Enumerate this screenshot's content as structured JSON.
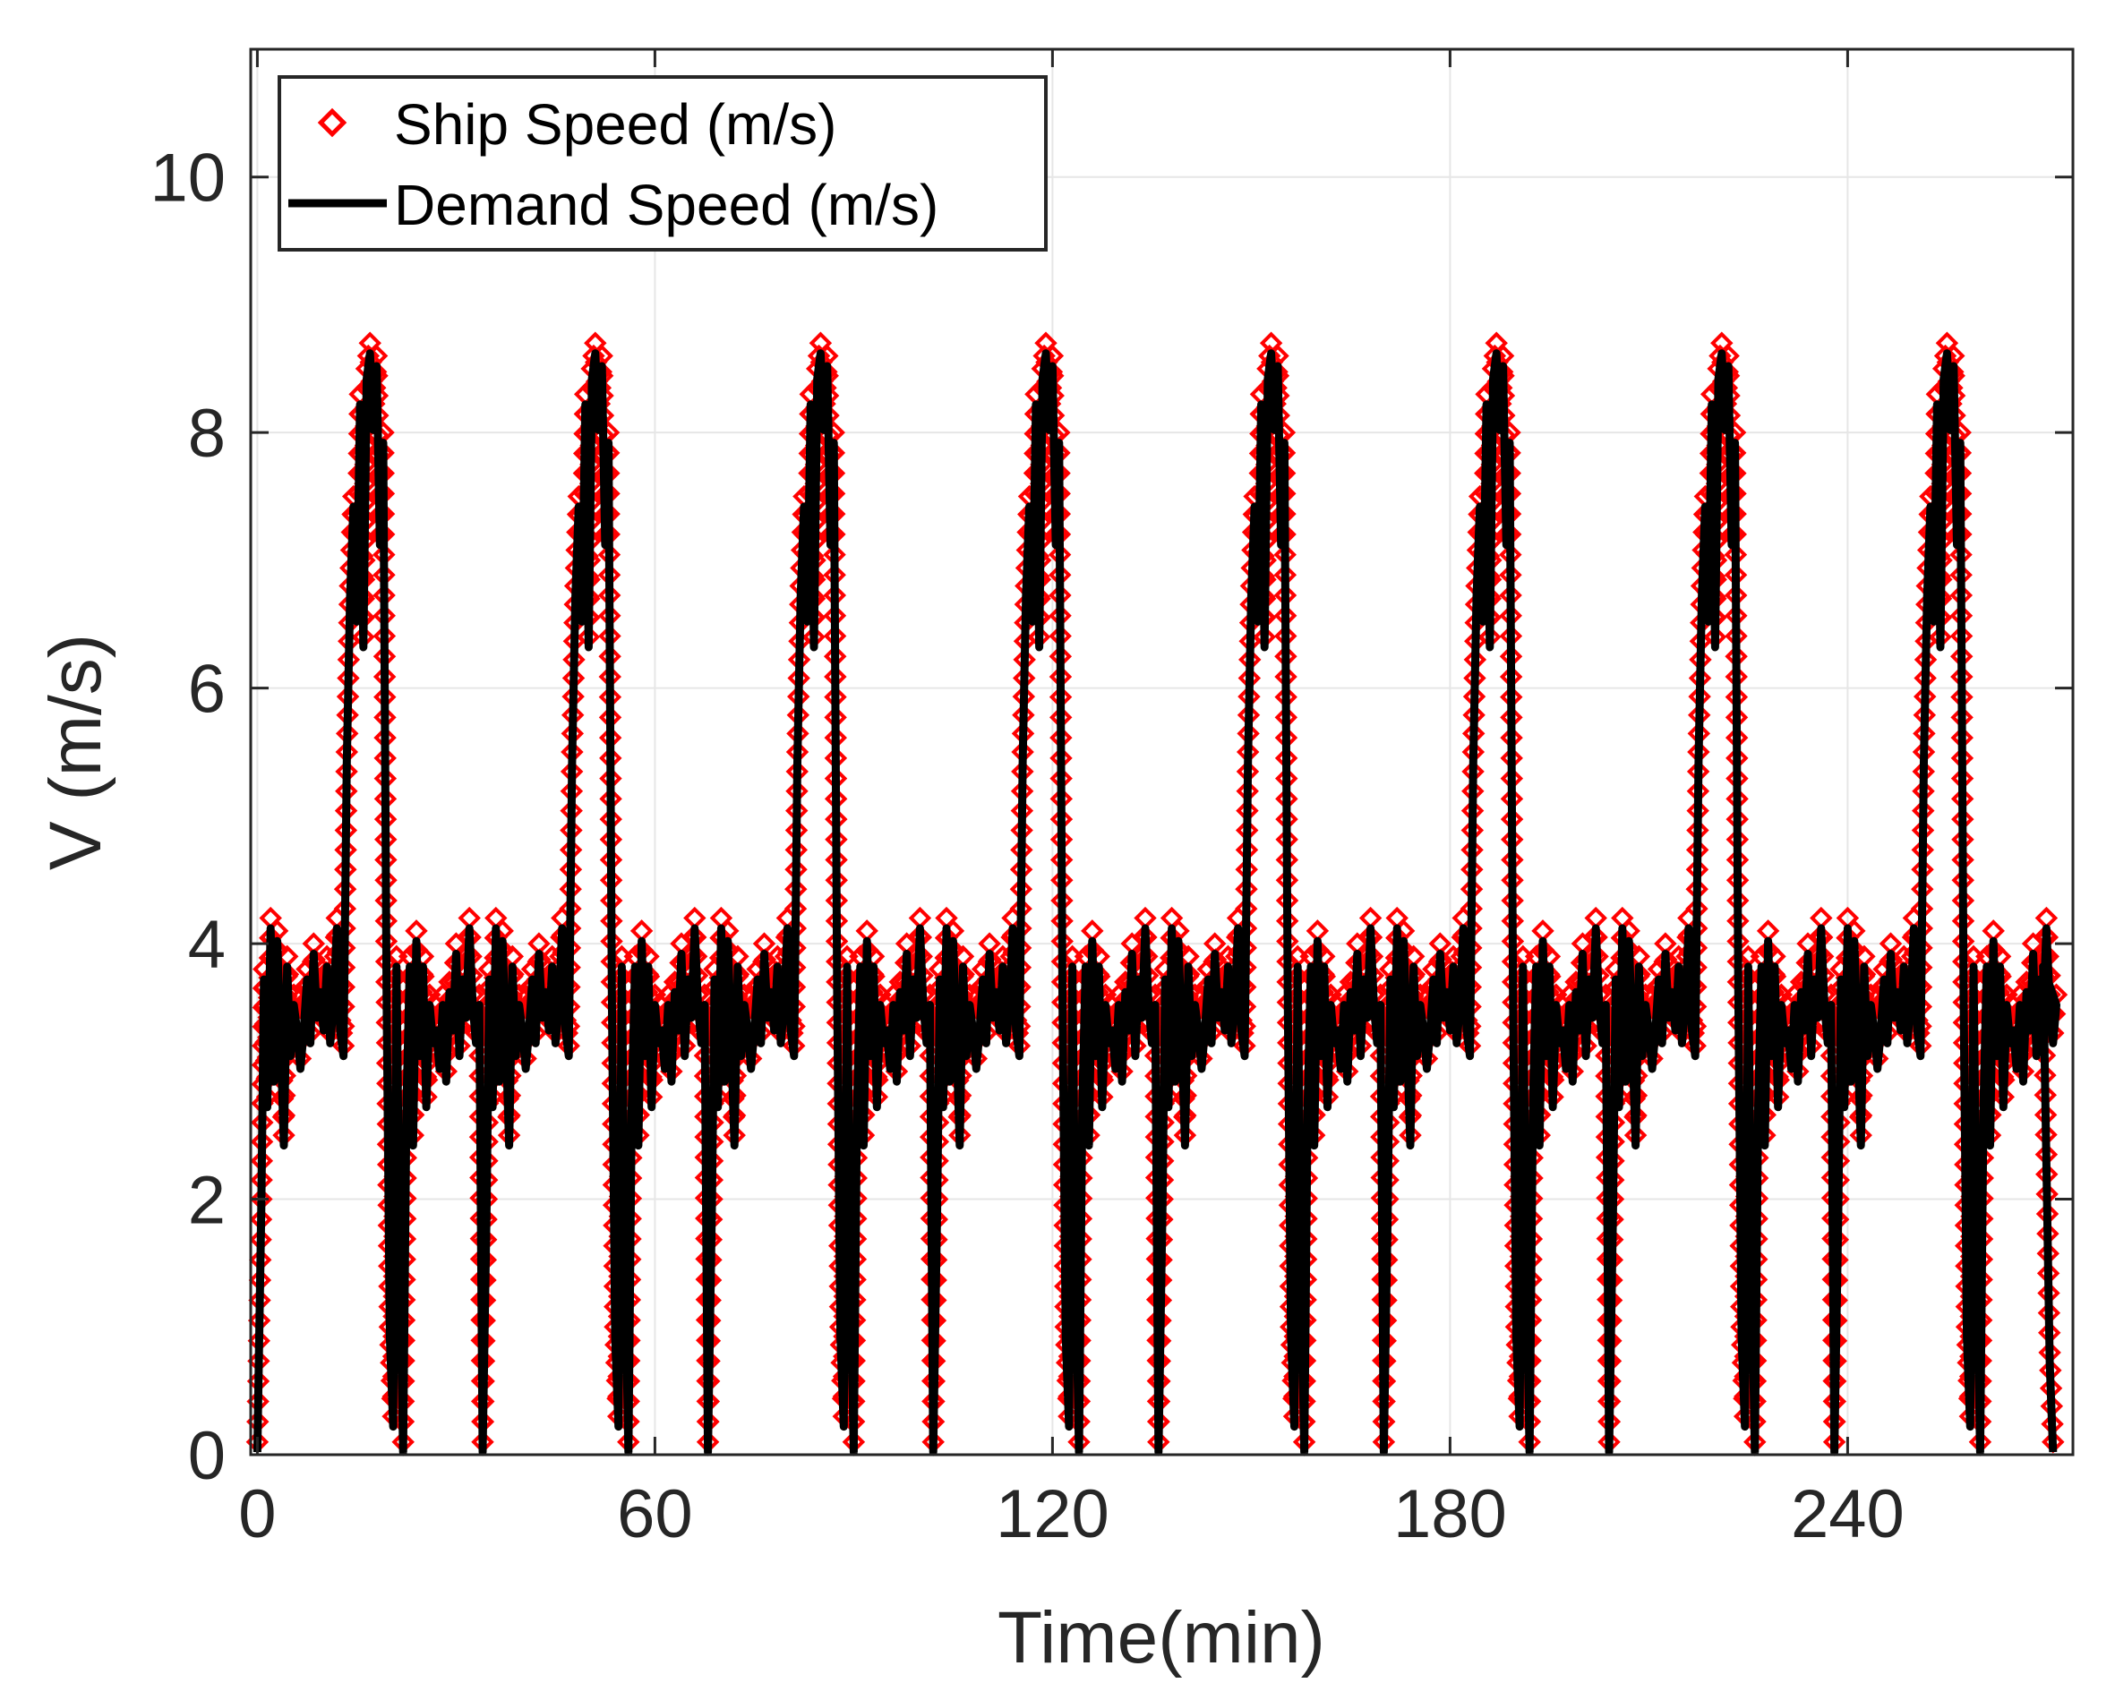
{
  "chart_data": {
    "type": "line",
    "title": "",
    "xlabel": "Time(min)",
    "ylabel": "V (m/s)",
    "xlim": [
      -1,
      274
    ],
    "ylim": [
      0,
      11
    ],
    "xticks": [
      0,
      60,
      120,
      180,
      240
    ],
    "xtick_labels": [
      "0",
      "60",
      "120",
      "180",
      "240"
    ],
    "yticks": [
      0,
      2,
      4,
      6,
      8,
      10
    ],
    "ytick_labels": [
      "0",
      "2",
      "4",
      "6",
      "8",
      "10"
    ],
    "grid": true,
    "legend_location": "top-left",
    "period_min": 34,
    "cycles": 8,
    "cycle_profile": {
      "t": [
        0,
        0.6,
        1.0,
        1.5,
        2.0,
        2.5,
        3.0,
        3.4,
        4.0,
        4.5,
        5.0,
        5.5,
        6.0,
        6.5,
        7.0,
        7.5,
        8.0,
        8.5,
        9.0,
        9.5,
        10.0,
        10.5,
        11.0,
        11.5,
        12.0,
        12.5,
        13.0,
        13.5,
        14.0,
        14.5,
        15.0,
        15.5,
        16.0,
        16.5,
        17.0,
        17.5,
        18.0,
        18.5,
        19.0,
        19.5,
        20.0,
        20.5,
        21.0,
        21.5,
        22.0,
        22.5,
        23.0,
        23.5,
        24.0,
        24.5,
        25.0,
        25.5,
        26.0,
        26.5,
        27.0,
        27.5,
        28.0,
        28.5,
        29.0,
        29.5,
        30.0,
        30.5,
        31.0,
        31.5,
        32.0,
        32.5,
        33.0,
        33.5
      ],
      "v": [
        0.1,
        2.0,
        3.8,
        2.8,
        4.2,
        3.0,
        4.1,
        3.5,
        2.5,
        3.9,
        3.2,
        3.6,
        3.4,
        3.1,
        3.4,
        3.8,
        3.3,
        4.0,
        3.5,
        3.7,
        3.4,
        3.9,
        3.3,
        3.6,
        4.2,
        3.4,
        3.2,
        5.5,
        6.8,
        7.5,
        6.6,
        8.3,
        6.4,
        8.5,
        8.7,
        8.1,
        8.6,
        7.2,
        8.0,
        3.7,
        1.0,
        0.3,
        3.9,
        1.5,
        0.1,
        2.8,
        3.9,
        2.5,
        4.1,
        3.2,
        3.9,
        2.8,
        3.6,
        3.3,
        3.4,
        3.1,
        3.6,
        3.0,
        3.7,
        3.4,
        4.0,
        3.2,
        3.8,
        3.5,
        4.2,
        3.6,
        3.3,
        3.6
      ]
    },
    "series": [
      {
        "name": "Ship Speed (m/s)",
        "style": "red diamond markers",
        "color": "#ff0000",
        "min_value": 0,
        "max_value": 8.8
      },
      {
        "name": "Demand Speed (m/s)",
        "style": "solid black line",
        "color": "#000000",
        "min_value": 0,
        "max_value": 8.6
      }
    ]
  },
  "legend": {
    "items": [
      {
        "label": "Ship Speed (m/s)",
        "color": "#ff0000"
      },
      {
        "label": "Demand Speed (m/s)",
        "color": "#000000"
      }
    ]
  }
}
